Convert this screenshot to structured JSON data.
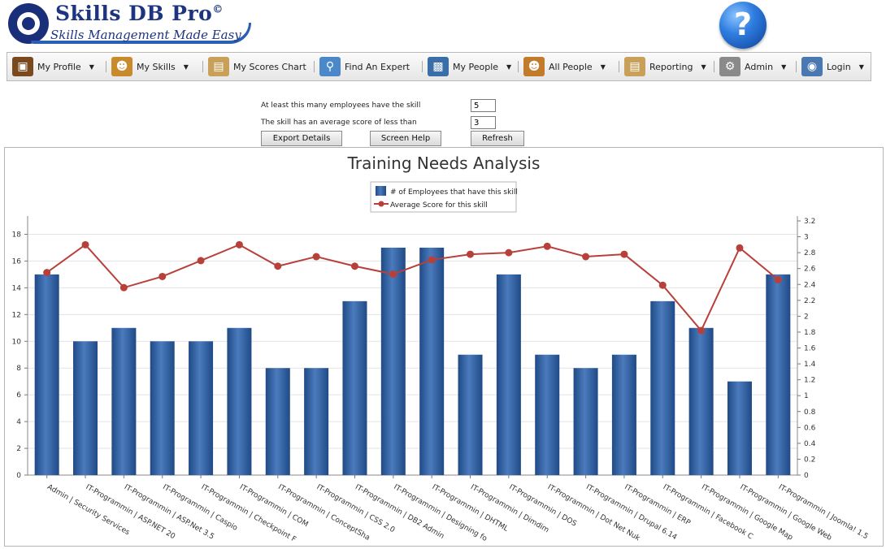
{
  "app": {
    "title": "Skills DB Pro",
    "title_mark": "©",
    "subtitle": "Skills Management Made Easy",
    "help_glyph": "?"
  },
  "nav": [
    {
      "label": "My Profile",
      "icon": "briefcase-icon",
      "dropdown": true,
      "color": "#7a4a1e"
    },
    {
      "label": "My Skills",
      "icon": "person-badge-icon",
      "dropdown": true,
      "color": "#c98a2c"
    },
    {
      "label": "My Scores Chart",
      "icon": "clipboard-icon",
      "dropdown": false,
      "color": "#c9a05a"
    },
    {
      "label": "Find An Expert",
      "icon": "magnifier-icon",
      "dropdown": false,
      "color": "#4a88c9"
    },
    {
      "label": "My People",
      "icon": "id-card-icon",
      "dropdown": true,
      "color": "#3a6ea8"
    },
    {
      "label": "All People",
      "icon": "group-icon",
      "dropdown": true,
      "color": "#c27b2a"
    },
    {
      "label": "Reporting",
      "icon": "clipboard-icon",
      "dropdown": true,
      "color": "#c9a05a"
    },
    {
      "label": "Admin",
      "icon": "gear-icon",
      "dropdown": true,
      "color": "#8a8a8a"
    },
    {
      "label": "Login",
      "icon": "monitor-eye-icon",
      "dropdown": true,
      "color": "#4a78b0"
    }
  ],
  "filters": {
    "min_employees_label": "At least this many employees have the skill",
    "min_employees_value": "5",
    "avg_score_label": "The skill has an average score of less than",
    "avg_score_value": "3"
  },
  "buttons": {
    "export": "Export Details",
    "help": "Screen Help",
    "refresh": "Refresh"
  },
  "chart_data": {
    "type": "bar",
    "title": "Training Needs Analysis",
    "legend_position": "top-center",
    "grid": true,
    "categories": [
      "Admin | Security Services",
      "IT-Programmin | ASP.NET 20",
      "IT-Programmin | ASP.Net 3.5",
      "IT-Programmin | Caspio",
      "IT-Programmin | Checkpoint F",
      "IT-Programmin | COM",
      "IT-Programmin | ConceptSha",
      "IT-Programmin | CSS 2.0",
      "IT-Programmin | DB2 Admin",
      "IT-Programmin | Designing fo",
      "IT-Programmin | DHTML",
      "IT-Programmin | Dimdim",
      "IT-Programmin | DOS",
      "IT-Programmin | Dot Net Nuk",
      "IT-Programmin | Drupal 6.14",
      "IT-Programmin | ERP",
      "IT-Programmin | Facebook C",
      "IT-Programmin | Google Map",
      "IT-Programmin | Google Web",
      "IT-Programmin | Joomla! 1.5"
    ],
    "series": [
      {
        "name": "# of Employees that have this skill",
        "type": "bar",
        "axis": "left",
        "color": "#2f5d9e",
        "values": [
          15,
          10,
          11,
          10,
          10,
          11,
          8,
          8,
          13,
          17,
          17,
          9,
          15,
          9,
          8,
          9,
          13,
          11,
          7,
          15
        ]
      },
      {
        "name": "Average Score for this skill",
        "type": "line",
        "axis": "right",
        "color": "#b8403b",
        "values": [
          2.55,
          2.9,
          2.36,
          2.5,
          2.7,
          2.9,
          2.63,
          2.75,
          2.63,
          2.53,
          2.71,
          2.78,
          2.8,
          2.88,
          2.75,
          2.78,
          2.39,
          1.82,
          2.86,
          2.46
        ]
      }
    ],
    "ylim_left": [
      0,
      19
    ],
    "yticks_left": [
      0,
      2,
      4,
      6,
      8,
      10,
      12,
      14,
      16,
      18
    ],
    "ylim_right": [
      0,
      3.2
    ],
    "yticks_right": [
      "0",
      "0.2",
      "0.4",
      "0.6",
      "0.8",
      "1",
      "1.2",
      "1.4",
      "1.6",
      "1.8",
      "2",
      "2.2",
      "2.4",
      "2.6",
      "2.8",
      "3",
      "3.2"
    ]
  }
}
